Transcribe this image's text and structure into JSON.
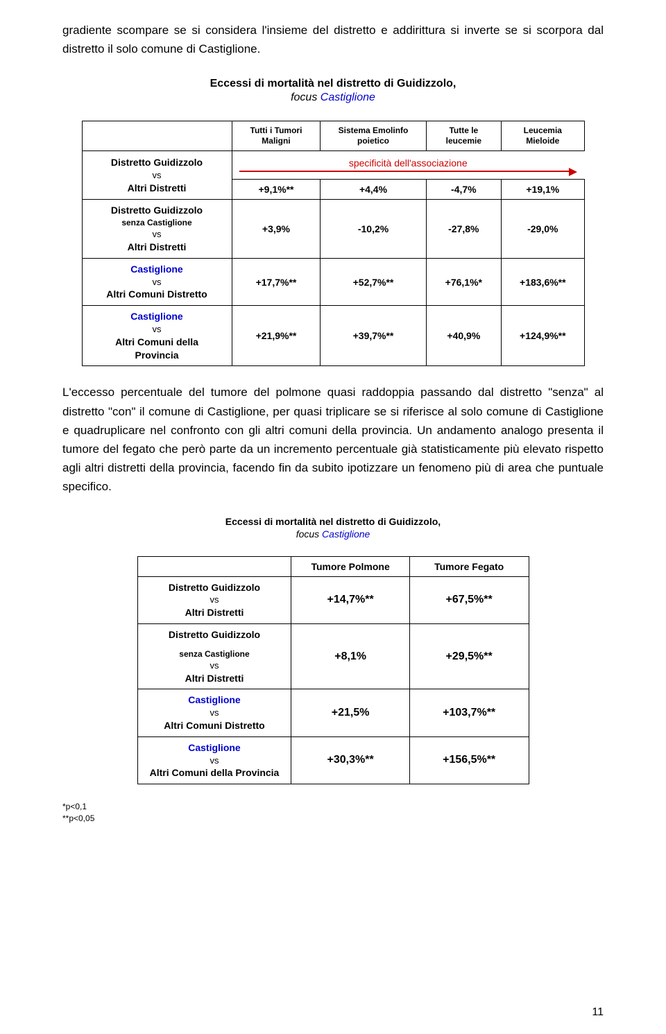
{
  "colors": {
    "blue": "#0000cc",
    "red": "#cc0000",
    "text": "#000000",
    "bg": "#ffffff",
    "border": "#000000"
  },
  "intro_paragraph": "gradiente scompare se si considera l'insieme del distretto e addirittura si inverte se si scorpora dal distretto il solo comune di Castiglione.",
  "table1": {
    "title": "Eccessi di mortalità nel distretto di Guidizzolo,",
    "subtitle_prefix": "focus ",
    "subtitle_blue": "Castiglione",
    "col_headers": [
      "Tutti i\nTumori\nMaligni",
      "Sistema\nEmolinfo\npoietico",
      "Tutte le\nleucemie",
      "Leucemia\nMieloide"
    ],
    "specificity_label": "specificità dell'associazione",
    "rows": [
      {
        "label_parts": [
          {
            "text": "Distretto Guidizzolo",
            "bold": true
          },
          {
            "text": "vs",
            "bold": false
          },
          {
            "text": "Altri Distretti",
            "bold": true
          }
        ],
        "values": [
          "+9,1%**",
          "+4,4%",
          "-4,7%",
          "+19,1%"
        ],
        "has_spec_row": true
      },
      {
        "label_parts": [
          {
            "text": "Distretto Guidizzolo",
            "bold": true
          },
          {
            "text": "senza Castiglione",
            "bold": true,
            "small": true
          },
          {
            "text": "vs",
            "bold": false
          },
          {
            "text": "Altri Distretti",
            "bold": true
          }
        ],
        "values": [
          "+3,9%",
          "-10,2%",
          "-27,8%",
          "-29,0%"
        ]
      },
      {
        "label_parts": [
          {
            "text": "Castiglione",
            "bold": true,
            "blue": true
          },
          {
            "text": "vs",
            "bold": false
          },
          {
            "text": "Altri Comuni Distretto",
            "bold": true
          }
        ],
        "values": [
          "+17,7%**",
          "+52,7%**",
          "+76,1%*",
          "+183,6%**"
        ]
      },
      {
        "label_parts": [
          {
            "text": "Castiglione",
            "bold": true,
            "blue": true
          },
          {
            "text": "vs",
            "bold": false
          },
          {
            "text": "Altri Comuni della",
            "bold": true
          },
          {
            "text": "Provincia",
            "bold": true
          }
        ],
        "values": [
          "+21,9%**",
          "+39,7%**",
          "+40,9%",
          "+124,9%**"
        ]
      }
    ]
  },
  "middle_paragraph": "L'eccesso percentuale del tumore del polmone quasi raddoppia passando dal distretto \"senza\" al distretto \"con\" il comune di Castiglione, per quasi triplicare se si riferisce al solo comune di Castiglione e quadruplicare nel confronto con gli altri comuni della provincia. Un andamento analogo presenta il tumore del fegato che però parte da un incremento percentuale già statisticamente più elevato rispetto agli altri distretti della provincia, facendo fin da subito ipotizzare un fenomeno più di area che puntuale specifico.",
  "table2": {
    "title": "Eccessi di mortalità nel distretto di Guidizzolo,",
    "subtitle_prefix": "focus ",
    "subtitle_blue": "Castiglione",
    "col_headers": [
      "Tumore Polmone",
      "Tumore Fegato"
    ],
    "rows": [
      {
        "label_parts": [
          {
            "text": "Distretto Guidizzolo",
            "bold": true
          },
          {
            "text": "vs",
            "bold": false
          },
          {
            "text": "Altri Distretti",
            "bold": true
          }
        ],
        "values": [
          "+14,7%**",
          "+67,5%**"
        ]
      },
      {
        "label_parts": [
          {
            "text": "Distretto Guidizzolo",
            "bold": true
          },
          {
            "text": "senza Castiglione",
            "bold": true,
            "small": true
          },
          {
            "text": "vs",
            "bold": false
          },
          {
            "text": "Altri Distretti",
            "bold": true
          }
        ],
        "values": [
          "+8,1%",
          "+29,5%**"
        ],
        "gap_after_first": true
      },
      {
        "label_parts": [
          {
            "text": "Castiglione",
            "bold": true,
            "blue": true
          },
          {
            "text": "vs",
            "bold": false
          },
          {
            "text": "Altri Comuni Distretto",
            "bold": true
          }
        ],
        "values": [
          "+21,5%",
          "+103,7%**"
        ]
      },
      {
        "label_parts": [
          {
            "text": "Castiglione",
            "bold": true,
            "blue": true
          },
          {
            "text": "vs",
            "bold": false
          },
          {
            "text": "Altri Comuni della Provincia",
            "bold": true
          }
        ],
        "values": [
          "+30,3%**",
          "+156,5%**"
        ]
      }
    ]
  },
  "footnote1": "*p<0,1",
  "footnote2": "**p<0,05",
  "page_number": "11"
}
